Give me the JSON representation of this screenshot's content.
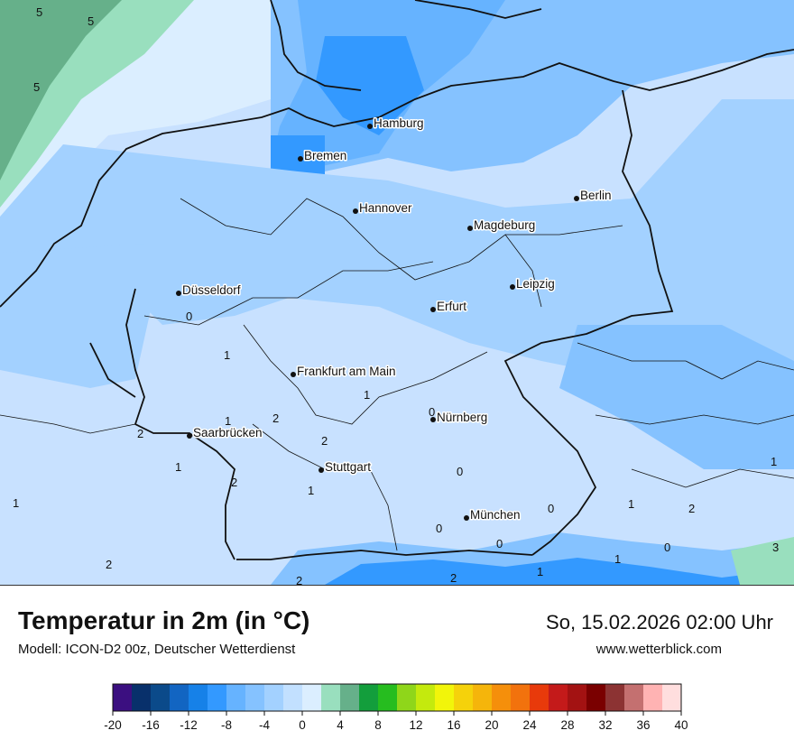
{
  "header": {
    "title": "Temperatur in 2m (in °C)",
    "subtitle": "Modell: ICON-D2 00z, Deutscher Wetterdienst",
    "datetime": "So, 15.02.2026 02:00 Uhr",
    "website": "www.wetterblick.com"
  },
  "cities": [
    {
      "id": "hamburg",
      "name": "Hamburg"
    },
    {
      "id": "bremen",
      "name": "Bremen"
    },
    {
      "id": "hannover",
      "name": "Hannover"
    },
    {
      "id": "berlin",
      "name": "Berlin"
    },
    {
      "id": "magdeburg",
      "name": "Magdeburg"
    },
    {
      "id": "duesseldorf",
      "name": "Düsseldorf"
    },
    {
      "id": "leipzig",
      "name": "Leipzig"
    },
    {
      "id": "erfurt",
      "name": "Erfurt"
    },
    {
      "id": "frankfurt",
      "name": "Frankfurt am Main"
    },
    {
      "id": "nuernberg",
      "name": "Nürnberg"
    },
    {
      "id": "saarbruecken",
      "name": "Saarbrücken"
    },
    {
      "id": "stuttgart",
      "name": "Stuttgart"
    },
    {
      "id": "muenchen",
      "name": "München"
    }
  ],
  "isotherm_labels": [
    "5",
    "5",
    "5",
    "0",
    "1",
    "1",
    "1",
    "2",
    "2",
    "2",
    "1",
    "1",
    "2",
    "0",
    "0",
    "0",
    "0",
    "0",
    "1",
    "2",
    "0",
    "1",
    "1",
    "2",
    "1",
    "2",
    "3",
    "2",
    "1"
  ],
  "legend": {
    "tick_labels": [
      "-20",
      "-16",
      "-12",
      "-8",
      "-4",
      "0",
      "4",
      "8",
      "12",
      "16",
      "20",
      "24",
      "28",
      "32",
      "36",
      "40"
    ],
    "colors": [
      "#3b0f80",
      "#08306b",
      "#0b4a8a",
      "#1265c2",
      "#1681e8",
      "#3399ff",
      "#66b3ff",
      "#85c2ff",
      "#a3d1ff",
      "#c2e0ff",
      "#dbeeff",
      "#99dfbe",
      "#66b08a",
      "#139e3c",
      "#26bd1f",
      "#8fd61a",
      "#c4ea0d",
      "#f2f50a",
      "#f5d20b",
      "#f5b50b",
      "#f58f0b",
      "#f2720d",
      "#e83a0b",
      "#c41a1a",
      "#a31212",
      "#7a0000",
      "#8c3333",
      "#c47070",
      "#ffb3b3",
      "#ffdede"
    ]
  }
}
